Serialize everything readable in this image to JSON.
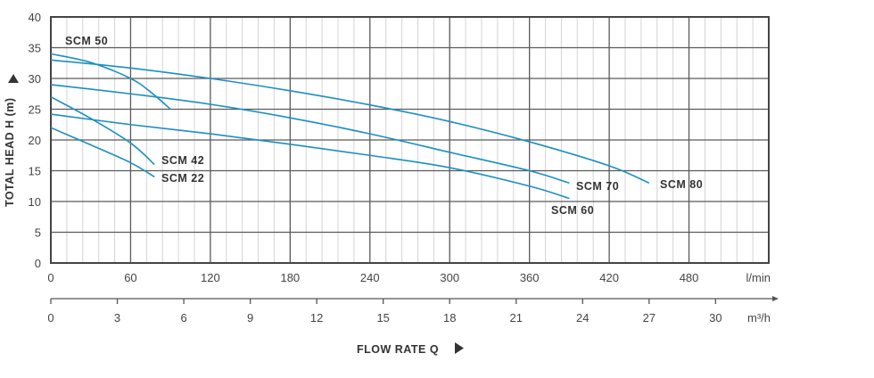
{
  "chart_data": {
    "type": "line",
    "title": "",
    "ylabel": "TOTAL HEAD H (m)",
    "xlabel": "FLOW RATE Q",
    "x_unit": "l/min",
    "x2_unit": "m³/h",
    "xlim": [
      0,
      540
    ],
    "ylim": [
      0,
      40
    ],
    "x_ticks": [
      "0",
      "60",
      "120",
      "180",
      "240",
      "300",
      "360",
      "420",
      "480"
    ],
    "x_tick_values": [
      0,
      60,
      120,
      180,
      240,
      300,
      360,
      420,
      480
    ],
    "x2_ticks": [
      "0",
      "3",
      "6",
      "9",
      "12",
      "15",
      "18",
      "21",
      "24",
      "27",
      "30"
    ],
    "x2_tick_values": [
      0,
      3,
      6,
      9,
      12,
      15,
      18,
      21,
      24,
      27,
      30
    ],
    "y_ticks": [
      "0",
      "5",
      "10",
      "15",
      "20",
      "25",
      "30",
      "35",
      "40"
    ],
    "y_tick_values": [
      0,
      5,
      10,
      15,
      20,
      25,
      30,
      35,
      40
    ],
    "grid": true,
    "line_color": "#1b8fc2",
    "series": [
      {
        "name": "SCM 50",
        "x": [
          0,
          30,
          60,
          75,
          90
        ],
        "y": [
          34,
          32.6,
          30,
          27.8,
          25
        ]
      },
      {
        "name": "SCM 42",
        "x": [
          0,
          30,
          60,
          78
        ],
        "y": [
          27,
          23.5,
          19.5,
          16
        ]
      },
      {
        "name": "SCM 22",
        "x": [
          0,
          30,
          60,
          78
        ],
        "y": [
          22,
          19.2,
          16.3,
          14
        ]
      },
      {
        "name": "SCM 80",
        "x": [
          0,
          60,
          120,
          180,
          240,
          300,
          360,
          420,
          450
        ],
        "y": [
          33,
          31.7,
          30,
          28,
          25.7,
          23,
          19.7,
          15.8,
          13
        ]
      },
      {
        "name": "SCM 70",
        "x": [
          0,
          60,
          120,
          180,
          240,
          300,
          360,
          390
        ],
        "y": [
          29,
          27.5,
          25.8,
          23.6,
          21,
          18,
          15,
          13
        ]
      },
      {
        "name": "SCM 60",
        "x": [
          0,
          60,
          120,
          180,
          240,
          300,
          360,
          390
        ],
        "y": [
          24.2,
          22.5,
          21,
          19.3,
          17.5,
          15.5,
          12.5,
          10.5
        ]
      }
    ]
  }
}
